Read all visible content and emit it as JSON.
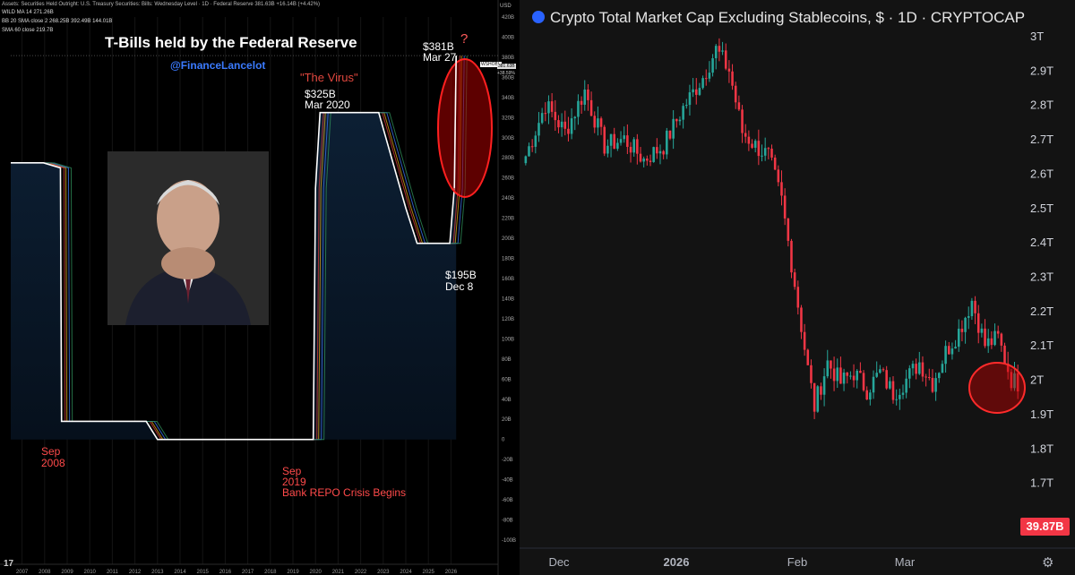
{
  "left": {
    "header": {
      "line1": "Assets: Securities Held Outright: U.S. Treasury Securities: Bills: Wednesday Level · 1D · Federal Reserve  381.63B +16.14B (+4.42%)",
      "line2": "WILD MA 14  271.26B",
      "line3": "BB 20 SMA close 2  268.25B  392.49B  144.01B",
      "line4": "SMA 60 close  219.7B",
      "currency": "USD"
    },
    "title": "T-Bills held by the Federal Reserve",
    "handle": "@FinanceLancelot",
    "annotations": {
      "virus": "\"The Virus\"",
      "peak2020_value": "$325B",
      "peak2020_date": "Mar 2020",
      "latest_value": "$381B",
      "latest_date": "Mar 27",
      "question": "?",
      "low_value": "$195B",
      "low_date": "Dec 8",
      "sep2008_a": "Sep",
      "sep2008_b": "2008",
      "sep2019_a": "Sep",
      "sep2019_b": "2019",
      "sep2019_c": "Bank REPO Crisis Begins",
      "price_label": "381.63B",
      "pct_label": "+38.59%",
      "symbol_label": "WSHOBL"
    },
    "colors": {
      "line": "#ffffff",
      "accent_red": "#ff3b3b",
      "fill": "#0d1a2a",
      "wild_ma": "#d4a017",
      "bb": "#3a6ee8",
      "sma": "#ffffff"
    },
    "yticks": [
      "420B",
      "400B",
      "380B",
      "360B",
      "340B",
      "320B",
      "300B",
      "280B",
      "260B",
      "240B",
      "220B",
      "200B",
      "180B",
      "160B",
      "140B",
      "120B",
      "100B",
      "80B",
      "60B",
      "40B",
      "20B",
      "0",
      "-20B",
      "-40B",
      "-60B",
      "-80B",
      "-100B"
    ],
    "xticks": [
      "2007",
      "2008",
      "2009",
      "2010",
      "2011",
      "2012",
      "2013",
      "2014",
      "2015",
      "2016",
      "2017",
      "2018",
      "2019",
      "2020",
      "2021",
      "2022",
      "2023",
      "2024",
      "2025",
      "2026"
    ]
  },
  "chart_data": [
    {
      "type": "area",
      "title": "T-Bills held by the Federal Reserve",
      "ylabel": "USD",
      "ylim": [
        -100,
        420
      ],
      "x": [
        2006.5,
        2007.95,
        2008.7,
        2008.75,
        2012.5,
        2013.0,
        2019.4,
        2019.9,
        2020.0,
        2020.2,
        2022.8,
        2024.0,
        2024.5,
        2025.95,
        2026.15,
        2026.23
      ],
      "series": [
        {
          "values": [
            275,
            275,
            270,
            18,
            18,
            0,
            0,
            0,
            250,
            325,
            325,
            230,
            195,
            195,
            250,
            381.63
          ]
        }
      ]
    },
    {
      "type": "candlestick",
      "title": "Crypto Total Market Cap Excluding Stablecoins, $ · 1D · CRYPTOCAP",
      "ylim": [
        1.65,
        3.05
      ],
      "xticks": [
        "Dec",
        "2026",
        "Feb",
        "Mar"
      ],
      "yticks": [
        "3T",
        "2.9T",
        "2.8T",
        "2.7T",
        "2.6T",
        "2.5T",
        "2.4T",
        "2.3T",
        "2.2T",
        "2.1T",
        "2T",
        "1.9T",
        "1.8T",
        "1.7T"
      ],
      "last_value_label": "39.87B",
      "colors": {
        "up": "#26a69a",
        "down": "#f23645"
      },
      "anchors": [
        {
          "i": 0,
          "v": 2.65
        },
        {
          "i": 6,
          "v": 2.8
        },
        {
          "i": 12,
          "v": 2.72
        },
        {
          "i": 18,
          "v": 2.84
        },
        {
          "i": 24,
          "v": 2.68
        },
        {
          "i": 30,
          "v": 2.7
        },
        {
          "i": 36,
          "v": 2.64
        },
        {
          "i": 42,
          "v": 2.68
        },
        {
          "i": 48,
          "v": 2.79
        },
        {
          "i": 54,
          "v": 2.88
        },
        {
          "i": 58,
          "v": 2.96
        },
        {
          "i": 62,
          "v": 2.9
        },
        {
          "i": 66,
          "v": 2.72
        },
        {
          "i": 70,
          "v": 2.68
        },
        {
          "i": 74,
          "v": 2.65
        },
        {
          "i": 78,
          "v": 2.52
        },
        {
          "i": 82,
          "v": 2.28
        },
        {
          "i": 86,
          "v": 2.03
        },
        {
          "i": 88,
          "v": 1.92
        },
        {
          "i": 92,
          "v": 2.05
        },
        {
          "i": 96,
          "v": 1.99
        },
        {
          "i": 100,
          "v": 2.02
        },
        {
          "i": 104,
          "v": 1.97
        },
        {
          "i": 108,
          "v": 2.02
        },
        {
          "i": 112,
          "v": 1.96
        },
        {
          "i": 116,
          "v": 2.0
        },
        {
          "i": 120,
          "v": 2.05
        },
        {
          "i": 124,
          "v": 1.99
        },
        {
          "i": 128,
          "v": 2.08
        },
        {
          "i": 132,
          "v": 2.14
        },
        {
          "i": 136,
          "v": 2.23
        },
        {
          "i": 140,
          "v": 2.1
        },
        {
          "i": 144,
          "v": 2.12
        },
        {
          "i": 148,
          "v": 2.0
        },
        {
          "i": 150,
          "v": 1.99
        }
      ]
    }
  ],
  "right": {
    "title": "Crypto Total Market Cap Excluding Stablecoins, $ · 1D · CRYPTOCAP",
    "price_tag": "39.87B"
  }
}
